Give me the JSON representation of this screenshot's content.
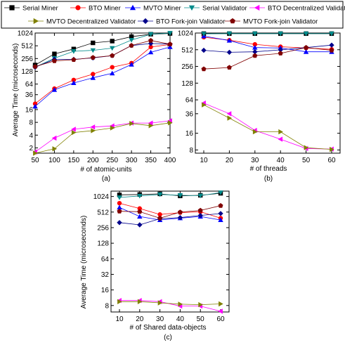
{
  "legend": {
    "entries": [
      {
        "label": "Serial Miner",
        "color": "#000000",
        "marker": "square"
      },
      {
        "label": "BTO Miner",
        "color": "#ff0000",
        "marker": "circle"
      },
      {
        "label": "MVTO Miner",
        "color": "#0000ff",
        "marker": "triangle-up"
      },
      {
        "label": "Serial Validator",
        "color": "#008b8b",
        "marker": "triangle-down"
      },
      {
        "label": "BTO Decentralized Validator",
        "color": "#ff00ff",
        "marker": "triangle-left"
      },
      {
        "label": "MVTO Decentralized Validator",
        "color": "#808000",
        "marker": "triangle-right"
      },
      {
        "label": "BTO Fork-join Validator",
        "color": "#00008b",
        "marker": "diamond"
      },
      {
        "label": "MVTO Fork-join Validator",
        "color": "#800000",
        "marker": "pentagon"
      }
    ]
  },
  "chart_data": [
    {
      "type": "line",
      "caption": "(a)",
      "xlabel": "# of atomic-units",
      "ylabel": "Average Time (microseconds)",
      "yscale": "log2",
      "ylim": [
        1.5,
        1024
      ],
      "yticks": [
        2,
        4,
        8,
        16,
        36,
        64,
        128,
        256,
        512,
        1024
      ],
      "xlim": [
        50,
        400
      ],
      "x": [
        50,
        100,
        150,
        200,
        250,
        300,
        350,
        400
      ],
      "series": [
        {
          "name": "Serial Miner",
          "values": [
            180,
            330,
            430,
            600,
            660,
            840,
            960,
            1000
          ]
        },
        {
          "name": "BTO Miner",
          "values": [
            22,
            50,
            80,
            110,
            160,
            200,
            480,
            550
          ]
        },
        {
          "name": "MVTO Miner",
          "values": [
            19,
            47,
            68,
            90,
            115,
            185,
            360,
            480
          ]
        },
        {
          "name": "Serial Validator",
          "values": [
            160,
            260,
            380,
            400,
            450,
            700,
            960,
            1024
          ]
        },
        {
          "name": "BTO Decentralized Validator",
          "values": [
            1.6,
            3.4,
            5.5,
            6.2,
            6.6,
            7.7,
            7.7,
            8.7
          ]
        },
        {
          "name": "MVTO Decentralized Validator",
          "values": [
            1.5,
            1.9,
            4.6,
            5.1,
            5.9,
            7.5,
            6.7,
            7.8
          ]
        },
        {
          "name": "BTO Fork-join Validator",
          "values": [
            160,
            245,
            245,
            265,
            300,
            520,
            580,
            560
          ]
        },
        {
          "name": "MVTO Fork-join Validator",
          "values": [
            165,
            225,
            240,
            270,
            300,
            520,
            680,
            560
          ]
        }
      ]
    },
    {
      "type": "line",
      "caption": "(b)",
      "xlabel": "# of threads",
      "ylabel": "",
      "yscale": "log2",
      "ylim": [
        7,
        1024
      ],
      "yticks": [
        8,
        16,
        36,
        64,
        128,
        256,
        512,
        1024
      ],
      "xlim": [
        10,
        60
      ],
      "x": [
        10,
        20,
        30,
        40,
        50,
        60
      ],
      "series": [
        {
          "name": "Serial Miner",
          "values": [
            1000,
            1000,
            1000,
            1000,
            1000,
            1000
          ]
        },
        {
          "name": "BTO Miner",
          "values": [
            860,
            760,
            640,
            580,
            550,
            520
          ]
        },
        {
          "name": "MVTO Miner",
          "values": [
            900,
            750,
            560,
            550,
            470,
            470
          ]
        },
        {
          "name": "Serial Validator",
          "values": [
            990,
            1000,
            1000,
            1000,
            1000,
            1000
          ]
        },
        {
          "name": "BTO Decentralized Validator",
          "values": [
            56,
            36,
            18,
            12.5,
            8.5,
            8.3
          ]
        },
        {
          "name": "MVTO Decentralized Validator",
          "values": [
            52,
            30,
            17,
            17,
            8.8,
            8.2
          ]
        },
        {
          "name": "BTO Fork-join Validator",
          "values": [
            500,
            460,
            470,
            510,
            560,
            620
          ]
        },
        {
          "name": "MVTO Fork-join Validator",
          "values": [
            230,
            245,
            400,
            440,
            560,
            500
          ]
        }
      ]
    },
    {
      "type": "line",
      "caption": "(c)",
      "xlabel": "# of Shared data-objects",
      "ylabel": "Average Time (microseconds)",
      "yscale": "log2",
      "ylim": [
        6,
        1300
      ],
      "yticks": [
        8,
        16,
        32,
        64,
        128,
        256,
        512,
        1024
      ],
      "xlim": [
        10,
        60
      ],
      "x": [
        10,
        20,
        30,
        40,
        50,
        60
      ],
      "series": [
        {
          "name": "Serial Miner",
          "values": [
            1100,
            1120,
            1150,
            1050,
            1080,
            1180
          ]
        },
        {
          "name": "BTO Miner",
          "values": [
            760,
            600,
            460,
            500,
            520,
            390
          ]
        },
        {
          "name": "MVTO Miner",
          "values": [
            630,
            420,
            360,
            390,
            420,
            360
          ]
        },
        {
          "name": "Serial Validator",
          "values": [
            980,
            1050,
            1120,
            1080,
            1060,
            1220
          ]
        },
        {
          "name": "BTO Decentralized Validator",
          "values": [
            10,
            10,
            9.5,
            7.8,
            7.8,
            6.2
          ]
        },
        {
          "name": "MVTO Decentralized Validator",
          "values": [
            9.5,
            9.5,
            9,
            8.5,
            8.3,
            8.6
          ]
        },
        {
          "name": "BTO Fork-join Validator",
          "values": [
            320,
            290,
            380,
            400,
            440,
            480
          ]
        },
        {
          "name": "MVTO Fork-join Validator",
          "values": [
            530,
            520,
            390,
            510,
            550,
            680
          ]
        }
      ]
    }
  ]
}
